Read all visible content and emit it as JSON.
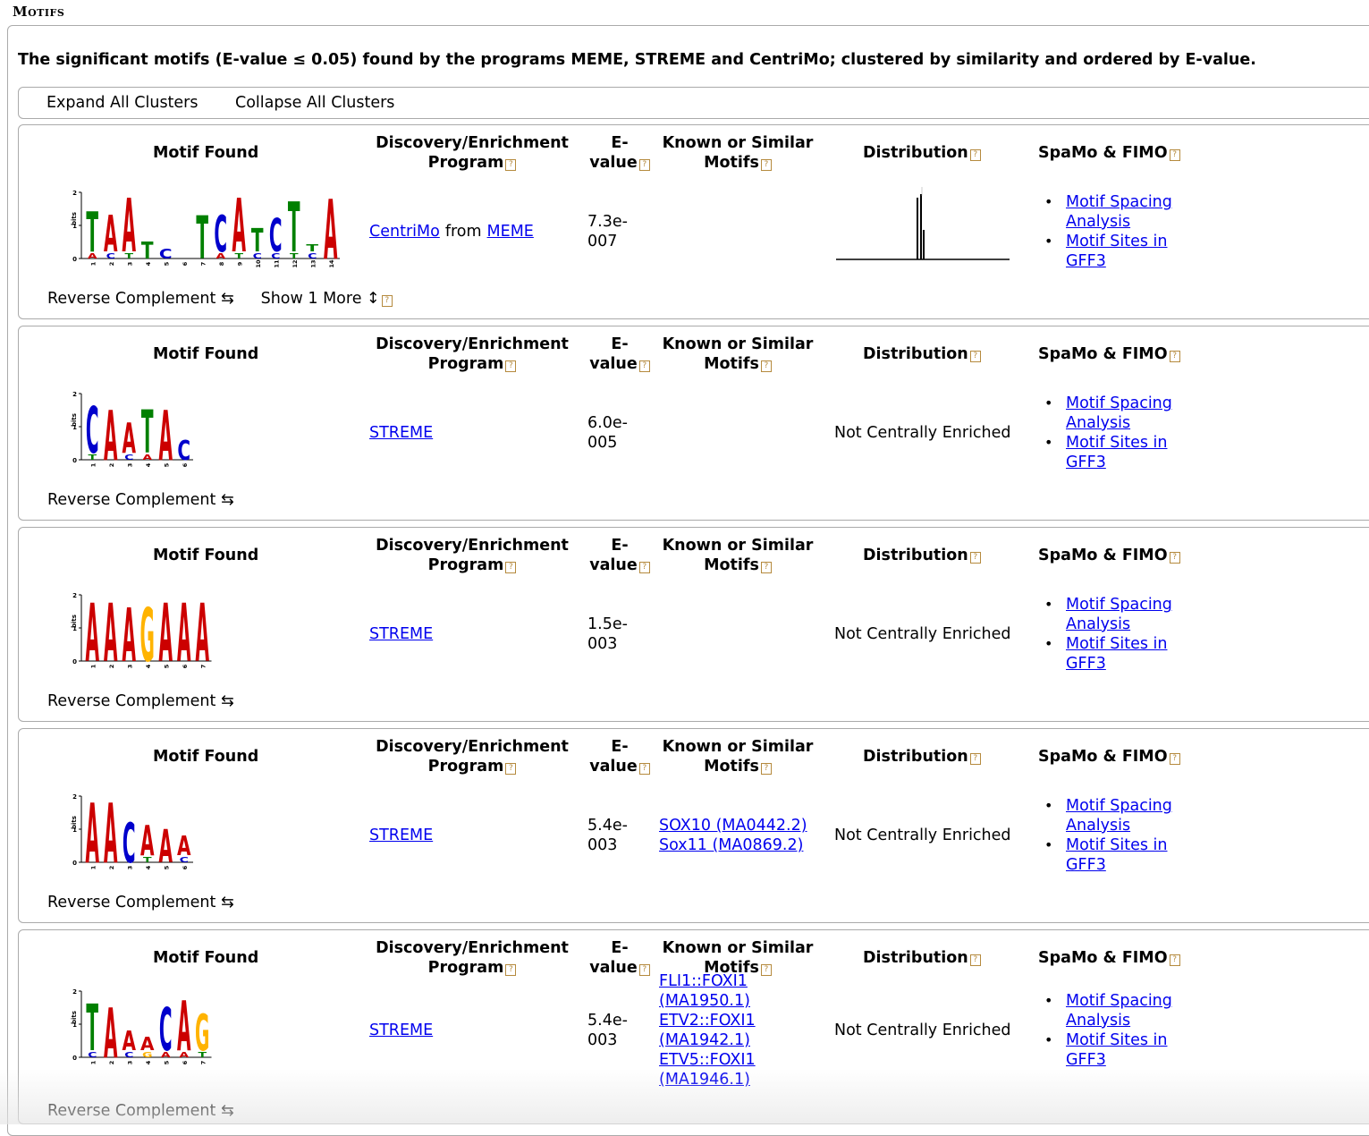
{
  "section_title": "Motifs",
  "intro": "The significant motifs (E-value ≤ 0.05) found by the programs MEME, STREME and CentriMo; clustered by similarity and ordered by E-value.",
  "toolbar": {
    "expand": "Expand All Clusters",
    "collapse": "Collapse All Clusters"
  },
  "headers": {
    "motif_found": "Motif Found",
    "program_l1": "Discovery/Enrichment",
    "program_l2": "Program",
    "evalue_l1": "E-",
    "evalue_l2": "value",
    "known_l1": "Known or Similar",
    "known_l2": "Motifs",
    "distribution": "Distribution",
    "spamo": "SpaMo & FIMO"
  },
  "help_glyph": "?",
  "from_word": "from",
  "reverse_complement": "Reverse Complement ⇆",
  "show_more": "Show 1 More ↕",
  "spamo_links": {
    "spacing_l1": "Motif Spacing",
    "spacing_l2": "Analysis",
    "sites_l1": "Motif Sites in",
    "sites_l2": "GFF3"
  },
  "not_central": "Not Centrally Enriched",
  "logo_axis": {
    "ylabel": "bits",
    "ticks": [
      "2",
      "1",
      "0"
    ]
  },
  "colors": {
    "A": "#cc0000",
    "C": "#0000cc",
    "G": "#ffb300",
    "T": "#008000",
    "link": "#0000ee"
  },
  "clusters": [
    {
      "program": "CentriMo",
      "program2": "MEME",
      "evalue_l1": "7.3e-",
      "evalue_l2": "007",
      "known": [],
      "sequence": "TAATCNTCATCTTA",
      "positions": [
        "1",
        "2",
        "3",
        "4",
        "5",
        "6",
        "7",
        "8",
        "9",
        "10",
        "11",
        "12",
        "13",
        "14"
      ],
      "heights": [
        1.2,
        1.1,
        1.6,
        0.5,
        0.3,
        0.05,
        1.3,
        1.1,
        1.6,
        0.7,
        1.0,
        1.5,
        0.2,
        1.8
      ],
      "sub": [
        "A",
        "C",
        "T",
        "",
        "",
        "",
        "",
        "A",
        "T",
        "C",
        "C",
        "T",
        "C",
        ""
      ],
      "has_distribution": true,
      "distribution_note": "",
      "show_more": true
    },
    {
      "program": "STREME",
      "program2": "",
      "evalue_l1": "6.0e-",
      "evalue_l2": "005",
      "known": [],
      "sequence": "CAATAC",
      "positions": [
        "1",
        "2",
        "3",
        "4",
        "5",
        "6"
      ],
      "heights": [
        1.4,
        1.5,
        0.9,
        1.3,
        1.5,
        0.6
      ],
      "sub": [
        "T",
        "",
        "C",
        "A",
        "",
        ""
      ],
      "has_distribution": false,
      "distribution_note": "Not Centrally Enriched",
      "show_more": false
    },
    {
      "program": "STREME",
      "program2": "",
      "evalue_l1": "1.5e-",
      "evalue_l2": "003",
      "known": [],
      "sequence": "AAAGAAA",
      "positions": [
        "1",
        "2",
        "3",
        "4",
        "5",
        "6",
        "7"
      ],
      "heights": [
        1.75,
        1.75,
        1.6,
        1.6,
        1.75,
        1.75,
        1.75
      ],
      "sub": [
        "",
        "",
        "",
        "",
        "",
        "",
        ""
      ],
      "has_distribution": false,
      "distribution_note": "Not Centrally Enriched",
      "show_more": false
    },
    {
      "program": "STREME",
      "program2": "",
      "evalue_l1": "5.4e-",
      "evalue_l2": "003",
      "known": [
        {
          "name": "SOX10 (MA0442.2)"
        },
        {
          "name": "Sox11 (MA0869.2)"
        }
      ],
      "sequence": "AACAAA",
      "positions": [
        "1",
        "2",
        "3",
        "4",
        "5",
        "6"
      ],
      "heights": [
        1.8,
        1.8,
        1.2,
        0.9,
        1.0,
        0.6
      ],
      "sub": [
        "",
        "",
        "",
        "T",
        "",
        "C"
      ],
      "has_distribution": false,
      "distribution_note": "Not Centrally Enriched",
      "show_more": false
    },
    {
      "program": "STREME",
      "program2": "",
      "evalue_l1": "5.4e-",
      "evalue_l2": "003",
      "known": [
        {
          "name": "FLI1::FOXI1"
        },
        {
          "name": "(MA1950.1)"
        },
        {
          "name": "ETV2::FOXI1"
        },
        {
          "name": "(MA1942.1)"
        },
        {
          "name": "ETV5::FOXI1"
        },
        {
          "name": "(MA1946.1)"
        }
      ],
      "sequence": "TAAACAG",
      "positions": [
        "1",
        "2",
        "3",
        "4",
        "5",
        "6",
        "7"
      ],
      "heights": [
        1.4,
        1.5,
        0.6,
        0.4,
        1.3,
        1.5,
        1.1
      ],
      "sub": [
        "C",
        "",
        "C",
        "G",
        "A",
        "A",
        "T"
      ],
      "has_distribution": false,
      "distribution_note": "Not Centrally Enriched",
      "show_more": false
    }
  ]
}
